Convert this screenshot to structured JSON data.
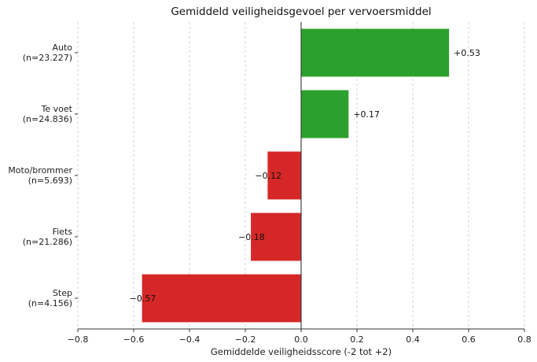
{
  "chart_data": {
    "type": "bar",
    "orientation": "horizontal",
    "title": "Gemiddeld veiligheidsgevoel per vervoersmiddel",
    "xlabel": "Gemiddelde veiligheidsscore (-2 tot +2)",
    "ylabel": "",
    "xlim": [
      -0.8,
      0.8
    ],
    "xticks": [
      -0.8,
      -0.6,
      -0.4,
      -0.2,
      0.0,
      0.2,
      0.4,
      0.6,
      0.8
    ],
    "xtick_labels": [
      "−0.8",
      "−0.6",
      "−0.4",
      "−0.2",
      "0.0",
      "0.2",
      "0.4",
      "0.6",
      "0.8"
    ],
    "grid": "vertical dashed",
    "categories": [
      {
        "label": "Auto",
        "n": "(n=23.227)"
      },
      {
        "label": "Te voet",
        "n": "(n=24.836)"
      },
      {
        "label": "Moto/brommer",
        "n": "(n=5.693)"
      },
      {
        "label": "Fiets",
        "n": "(n=21.286)"
      },
      {
        "label": "Step",
        "n": "(n=4.156)"
      }
    ],
    "values": [
      0.53,
      0.17,
      -0.12,
      -0.18,
      -0.57
    ],
    "value_labels": [
      "+0.53",
      "+0.17",
      "−0.12",
      "−0.18",
      "−0.57"
    ],
    "colors": {
      "positive": "#2ca02c",
      "negative": "#d62728"
    }
  }
}
